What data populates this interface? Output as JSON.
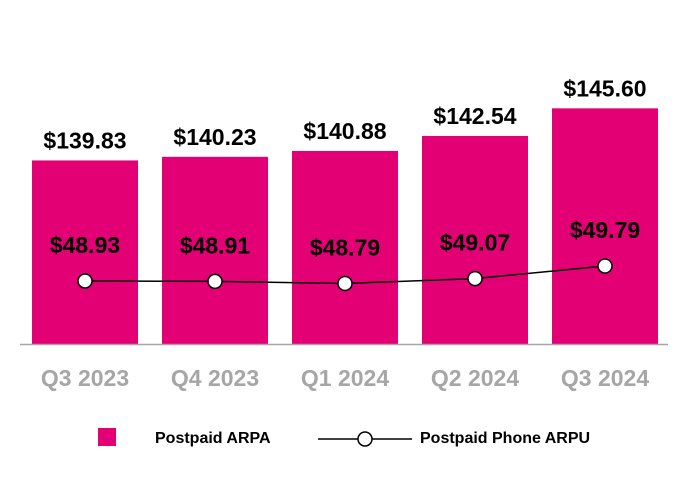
{
  "chart_data": {
    "type": "bar",
    "categories": [
      "Q3 2023",
      "Q4 2023",
      "Q1 2024",
      "Q2 2024",
      "Q3 2024"
    ],
    "series": [
      {
        "name": "Postpaid ARPA",
        "type": "bar",
        "values": [
          139.83,
          140.23,
          140.88,
          142.54,
          145.6
        ],
        "labels": [
          "$139.83",
          "$140.23",
          "$140.88",
          "$142.54",
          "$145.60"
        ],
        "color": "#E20074",
        "ylim": [
          119.5,
          157.6
        ]
      },
      {
        "name": "Postpaid Phone ARPU",
        "type": "line",
        "values": [
          48.93,
          48.91,
          48.79,
          49.07,
          49.79
        ],
        "labels": [
          "$48.93",
          "$48.91",
          "$48.79",
          "$49.07",
          "$49.79"
        ],
        "color": "#000000",
        "ylim": [
          45.31,
          65.08
        ]
      }
    ],
    "title": "",
    "xlabel": "",
    "ylabel": "",
    "grid": false,
    "legend_placement": "bottom",
    "tick_label_color": "#A6A6A6"
  }
}
